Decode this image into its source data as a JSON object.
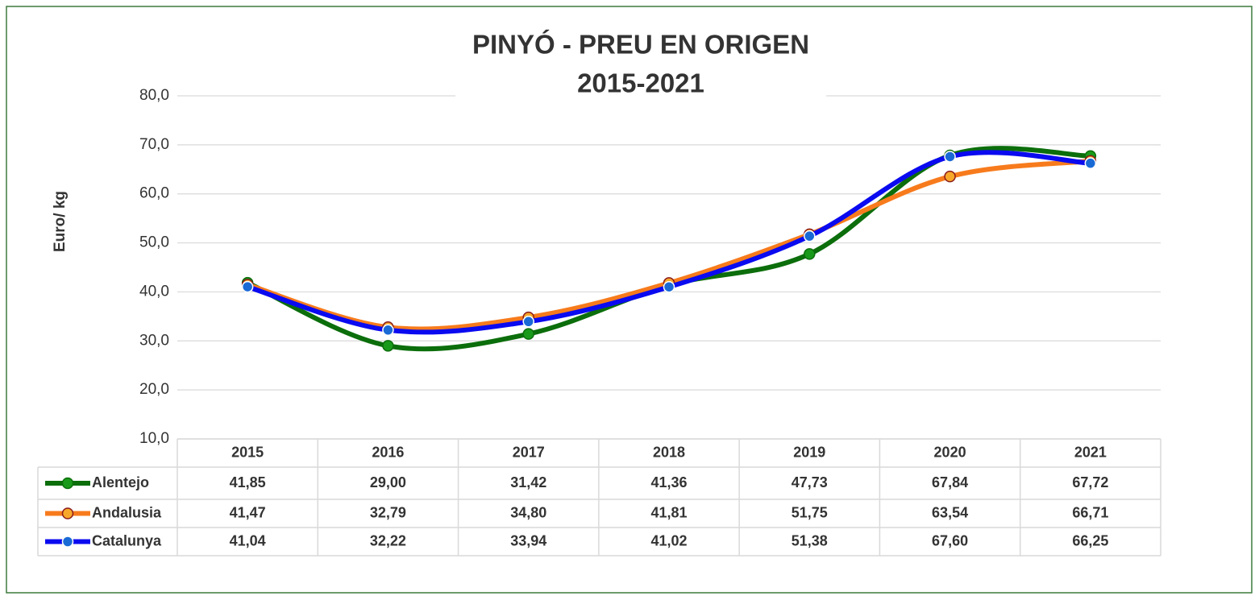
{
  "chart_data": {
    "type": "line",
    "title": [
      "PINYÓ - PREU EN ORIGEN",
      "2015-2021"
    ],
    "y_label": "Euro/ kg",
    "categories": [
      "2015",
      "2016",
      "2017",
      "2018",
      "2019",
      "2020",
      "2021"
    ],
    "series": [
      {
        "name": "Alentejo",
        "color": "#0b6e0b",
        "marker_fill": "#1a9a1a",
        "marker_edge": "#0b6e0b",
        "values": [
          41.85,
          29.0,
          31.42,
          41.36,
          47.73,
          67.84,
          67.72
        ],
        "value_labels": [
          "41,85",
          "29,00",
          "31,42",
          "41,36",
          "47,73",
          "67,84",
          "67,72"
        ]
      },
      {
        "name": "Andalusia",
        "color": "#f77b1c",
        "marker_fill": "#f7a82a",
        "marker_edge": "#8b1a1a",
        "values": [
          41.47,
          32.79,
          34.8,
          41.81,
          51.75,
          63.54,
          66.71
        ],
        "value_labels": [
          "41,47",
          "32,79",
          "34,80",
          "41,81",
          "51,75",
          "63,54",
          "66,71"
        ]
      },
      {
        "name": "Catalunya",
        "color": "#0a0af0",
        "marker_fill": "#1a6ad6",
        "marker_edge": "#ffffff",
        "values": [
          41.04,
          32.22,
          33.94,
          41.02,
          51.38,
          67.6,
          66.25
        ],
        "value_labels": [
          "41,04",
          "32,22",
          "33,94",
          "41,02",
          "51,38",
          "67,60",
          "66,25"
        ]
      }
    ],
    "ylim": [
      10,
      80
    ],
    "yticks": [
      {
        "value": 10,
        "label": "10,0"
      },
      {
        "value": 20,
        "label": "20,0"
      },
      {
        "value": 30,
        "label": "30,0"
      },
      {
        "value": 40,
        "label": "40,0"
      },
      {
        "value": 50,
        "label": "50,0"
      },
      {
        "value": 60,
        "label": "60,0"
      },
      {
        "value": 70,
        "label": "70,0"
      },
      {
        "value": 80,
        "label": "80,0"
      }
    ],
    "grid": true,
    "smooth": true,
    "data_table": true
  }
}
